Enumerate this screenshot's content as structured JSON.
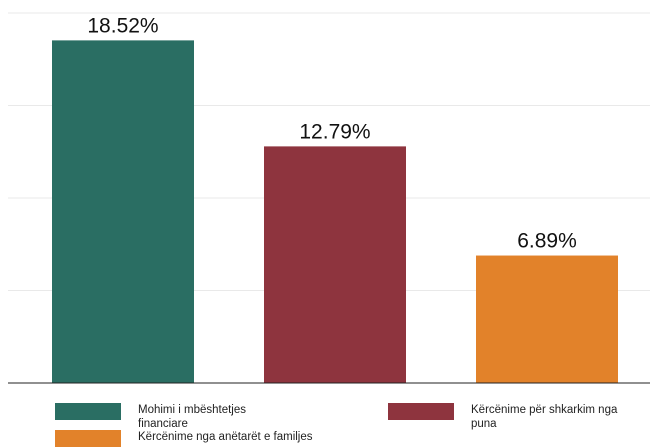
{
  "chart_data": {
    "type": "bar",
    "categories": [
      "Mohimi i mbështetjes financiare",
      "Kërcënime për shkarkim nga puna",
      "Kërcënime nga anëtarët e familjes"
    ],
    "values": [
      18.52,
      12.79,
      6.89
    ],
    "data_labels": [
      "18.52%",
      "12.79%",
      "6.89%"
    ],
    "colors": [
      "#2a6e63",
      "#8e343e",
      "#e2822a"
    ],
    "ylim": [
      0,
      20
    ],
    "grid": true,
    "legend_position": "bottom",
    "title": "",
    "xlabel": "",
    "ylabel": ""
  }
}
